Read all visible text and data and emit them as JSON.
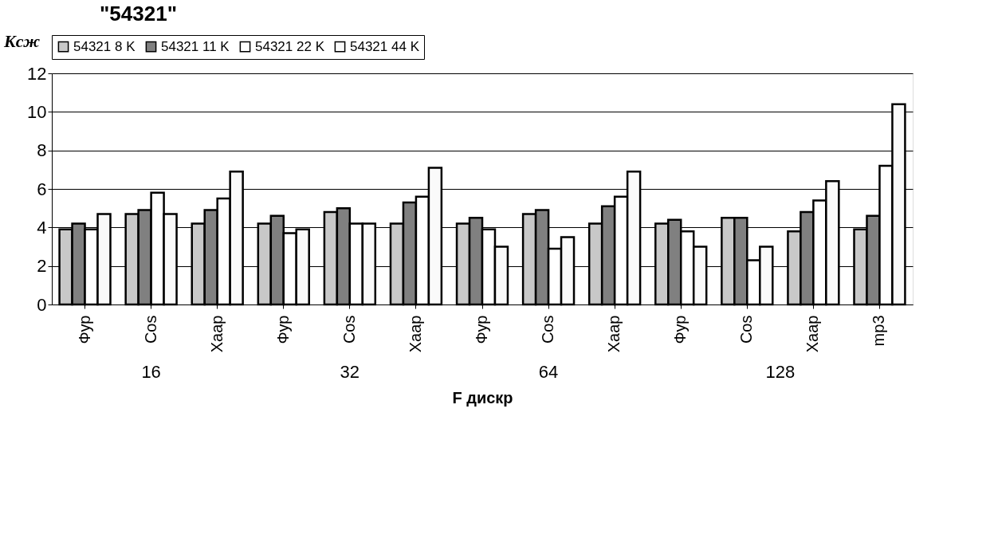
{
  "chart_data": {
    "type": "bar",
    "title": "\"54321\"",
    "ylabel": "Kсж",
    "xlabel": "F дискр",
    "categories": [
      "Фур",
      "Cos",
      "Хаар",
      "Фур",
      "Cos",
      "Хаар",
      "Фур",
      "Cos",
      "Хаар",
      "Фур",
      "Cos",
      "Хаар",
      "mp3"
    ],
    "annotations": [
      "16",
      "32",
      "64",
      "128"
    ],
    "series": [
      {
        "name": "54321 8 K",
        "color": "#c8c8c8",
        "values": [
          3.9,
          4.7,
          4.2,
          4.2,
          4.8,
          4.2,
          4.2,
          4.7,
          4.2,
          4.2,
          4.5,
          3.8,
          3.9
        ]
      },
      {
        "name": "54321 11 K",
        "color": "#808080",
        "values": [
          4.2,
          4.9,
          4.9,
          4.6,
          5.0,
          5.3,
          4.5,
          4.9,
          5.1,
          4.4,
          4.5,
          4.8,
          4.6
        ]
      },
      {
        "name": "54321 22 K",
        "color": "#ffffff",
        "values": [
          3.9,
          5.8,
          5.5,
          3.7,
          4.2,
          5.6,
          3.9,
          2.9,
          5.6,
          3.8,
          2.3,
          5.4,
          7.2
        ]
      },
      {
        "name": "54321 44 K",
        "color": "#fafafa",
        "values": [
          4.7,
          4.7,
          6.9,
          3.9,
          4.2,
          7.1,
          3.0,
          3.5,
          6.9,
          3.0,
          3.0,
          6.4,
          10.4
        ]
      }
    ],
    "ylim": [
      0,
      12
    ],
    "yticks": [
      0,
      2,
      4,
      6,
      8,
      10,
      12
    ],
    "grid": "y",
    "legend": "top"
  }
}
